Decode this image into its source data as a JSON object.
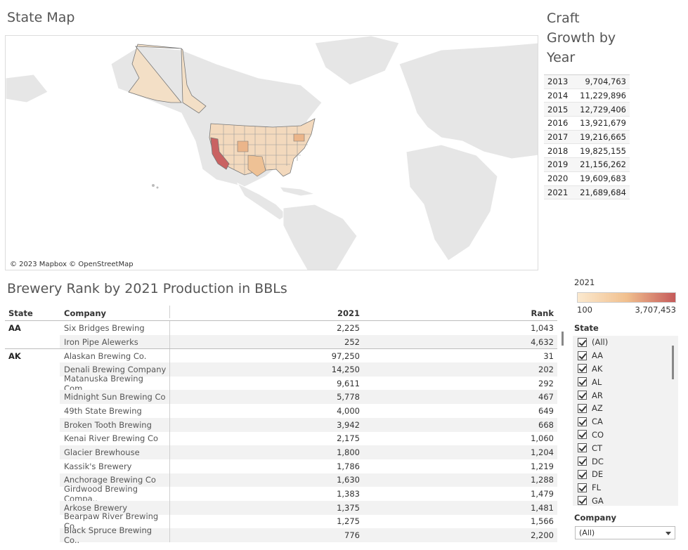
{
  "map": {
    "title": "State Map",
    "credit": "© 2023 Mapbox © OpenStreetMap",
    "land_color": "#e6e6e6",
    "state_color_low": "#f3d9bd",
    "state_color_high": "#c96262"
  },
  "growth": {
    "title": "Craft Growth by Year",
    "rows": [
      {
        "year": "2013",
        "value": "9,704,763"
      },
      {
        "year": "2014",
        "value": "11,229,896"
      },
      {
        "year": "2015",
        "value": "12,729,406"
      },
      {
        "year": "2016",
        "value": "13,921,679"
      },
      {
        "year": "2017",
        "value": "19,216,665"
      },
      {
        "year": "2018",
        "value": "19,825,155"
      },
      {
        "year": "2019",
        "value": "21,156,262"
      },
      {
        "year": "2020",
        "value": "19,609,683"
      },
      {
        "year": "2021",
        "value": "21,689,684"
      }
    ]
  },
  "rank": {
    "title": "Brewery Rank by 2021 Production in BBLs",
    "headers": {
      "state": "State",
      "company": "Company",
      "y2021": "2021",
      "rank": "Rank"
    },
    "rows": [
      {
        "state": "AA",
        "company": "Six Bridges Brewing",
        "y2021": "2,225",
        "rank": "1,043"
      },
      {
        "state": "",
        "company": "Iron Pipe Alewerks",
        "y2021": "252",
        "rank": "4,632"
      },
      {
        "state": "AK",
        "company": "Alaskan Brewing Co.",
        "y2021": "97,250",
        "rank": "31"
      },
      {
        "state": "",
        "company": "Denali Brewing Company",
        "y2021": "14,250",
        "rank": "202"
      },
      {
        "state": "",
        "company": "Matanuska Brewing Com..",
        "y2021": "9,611",
        "rank": "292"
      },
      {
        "state": "",
        "company": "Midnight Sun Brewing Co",
        "y2021": "5,778",
        "rank": "467"
      },
      {
        "state": "",
        "company": "49th State Brewing",
        "y2021": "4,000",
        "rank": "649"
      },
      {
        "state": "",
        "company": "Broken Tooth Brewing",
        "y2021": "3,942",
        "rank": "668"
      },
      {
        "state": "",
        "company": "Kenai River Brewing Co",
        "y2021": "2,175",
        "rank": "1,060"
      },
      {
        "state": "",
        "company": "Glacier Brewhouse",
        "y2021": "1,800",
        "rank": "1,204"
      },
      {
        "state": "",
        "company": "Kassik's Brewery",
        "y2021": "1,786",
        "rank": "1,219"
      },
      {
        "state": "",
        "company": "Anchorage Brewing Co",
        "y2021": "1,630",
        "rank": "1,288"
      },
      {
        "state": "",
        "company": "Girdwood Brewing Compa..",
        "y2021": "1,383",
        "rank": "1,479"
      },
      {
        "state": "",
        "company": "Arkose Brewery",
        "y2021": "1,375",
        "rank": "1,481"
      },
      {
        "state": "",
        "company": "Bearpaw River Brewing Co",
        "y2021": "1,275",
        "rank": "1,566"
      },
      {
        "state": "",
        "company": "Black Spruce Brewing Co..",
        "y2021": "776",
        "rank": "2,200"
      }
    ]
  },
  "legend": {
    "title": "2021",
    "min": "100",
    "max": "3,707,453"
  },
  "state_filter": {
    "title": "State",
    "items": [
      "(All)",
      "AA",
      "AK",
      "AL",
      "AR",
      "AZ",
      "CA",
      "CO",
      "CT",
      "DC",
      "DE",
      "FL",
      "GA"
    ]
  },
  "company_filter": {
    "title": "Company",
    "value": "(All)"
  }
}
